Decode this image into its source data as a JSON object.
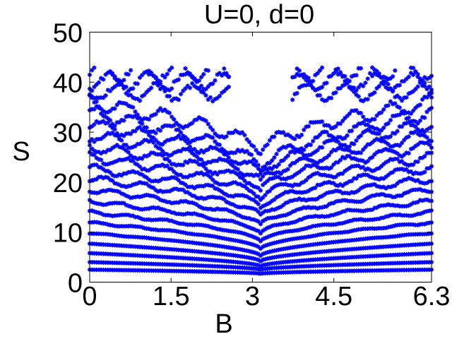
{
  "chart_data": {
    "type": "scatter",
    "title": "U=0, d=0",
    "xlabel": "B",
    "ylabel": "S",
    "xlim": [
      0,
      6.3
    ],
    "ylim": [
      0,
      50
    ],
    "x_ticks": [
      "0",
      "1.5",
      "3",
      "4.5",
      "6.3"
    ],
    "x_tick_values": [
      0,
      1.5,
      3,
      4.5,
      6.3
    ],
    "y_ticks": [
      "0",
      "10",
      "20",
      "30",
      "40",
      "50"
    ],
    "y_tick_values": [
      0,
      10,
      20,
      30,
      40,
      50
    ],
    "grid": false,
    "marker": "asterisk",
    "color": "#0000ff",
    "series_description_note": "",
    "bands": {
      "edge_levels": [
        2.5,
        4,
        5.8,
        7.7,
        9.8,
        11.9,
        14,
        16.2,
        18.5,
        20.7,
        22.8,
        25,
        27.2,
        29.4,
        31.6,
        33.8,
        35.9,
        38,
        40.2,
        42.2
      ],
      "center_levels": [
        1.7,
        2.5,
        3.2,
        4.2,
        5.3,
        6.7,
        8.2,
        9.8,
        11.5,
        13.3,
        15,
        16.8,
        18.5,
        20,
        21.5,
        22.8,
        26.3
      ],
      "x_step": 0.042,
      "max_S": 43
    }
  }
}
